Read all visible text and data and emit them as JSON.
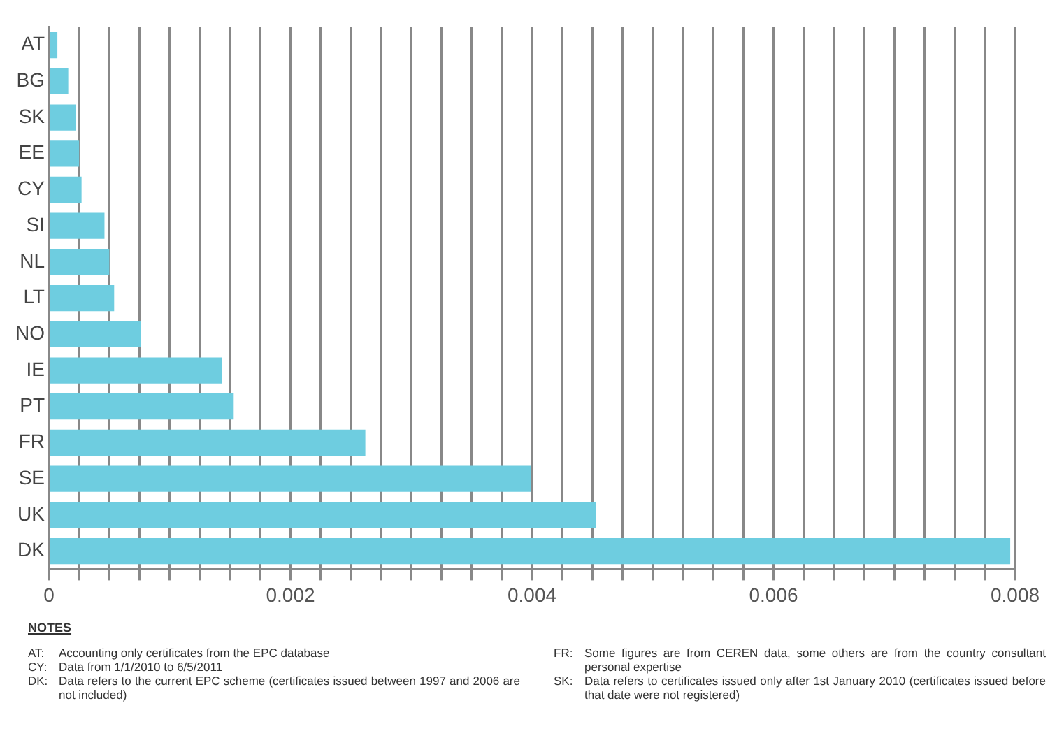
{
  "chart_data": {
    "type": "bar",
    "orientation": "horizontal",
    "categories": [
      "AT",
      "BG",
      "SK",
      "EE",
      "CY",
      "SI",
      "NL",
      "LT",
      "NO",
      "IE",
      "PT",
      "FR",
      "SE",
      "UK",
      "DK"
    ],
    "values": [
      7e-05,
      0.00016,
      0.00022,
      0.00025,
      0.00027,
      0.00046,
      0.0005,
      0.00054,
      0.00076,
      0.00143,
      0.00153,
      0.00262,
      0.00399,
      0.00453,
      0.00796
    ],
    "color": "#6ecde0",
    "xlim": [
      0,
      0.008
    ],
    "xticks": [
      0,
      {
        "value": 0.00025,
        "label": null
      },
      {
        "value": 0.0005,
        "label": null
      },
      {
        "value": 0.00075,
        "label": null
      },
      {
        "value": 0.001,
        "label": null
      },
      {
        "value": 0.00125,
        "label": null
      },
      {
        "value": 0.0015,
        "label": null
      },
      {
        "value": 0.00175,
        "label": null
      },
      0.002,
      {
        "value": 0.00225,
        "label": null
      },
      {
        "value": 0.0025,
        "label": null
      },
      {
        "value": 0.00275,
        "label": null
      },
      {
        "value": 0.003,
        "label": null
      },
      {
        "value": 0.00325,
        "label": null
      },
      {
        "value": 0.0035,
        "label": null
      },
      {
        "value": 0.00375,
        "label": null
      },
      0.004,
      {
        "value": 0.00425,
        "label": null
      },
      {
        "value": 0.0045,
        "label": null
      },
      {
        "value": 0.00475,
        "label": null
      },
      {
        "value": 0.005,
        "label": null
      },
      {
        "value": 0.00525,
        "label": null
      },
      {
        "value": 0.0055,
        "label": null
      },
      {
        "value": 0.00575,
        "label": null
      },
      0.006,
      {
        "value": 0.00625,
        "label": null
      },
      {
        "value": 0.0065,
        "label": null
      },
      {
        "value": 0.00675,
        "label": null
      },
      {
        "value": 0.007,
        "label": null
      },
      {
        "value": 0.00725,
        "label": null
      },
      {
        "value": 0.0075,
        "label": null
      },
      {
        "value": 0.00775,
        "label": null
      },
      0.008
    ],
    "grid": "x",
    "annotations": [
      "NOTES",
      "AT: Accounting only certificates from the EPC database",
      "CY: Data from 1/1/2010 to 6/5/2011",
      "DK: Data refers to the current EPC scheme (certificates issued between 1997 and 2006 are not included)",
      "FR: Some figures are from CEREN data, some others are from the country consultant personal expertise",
      "SK: Data refers to certificates issued only after 1st January 2010 (certificates issued before that date were not registered)"
    ]
  }
}
